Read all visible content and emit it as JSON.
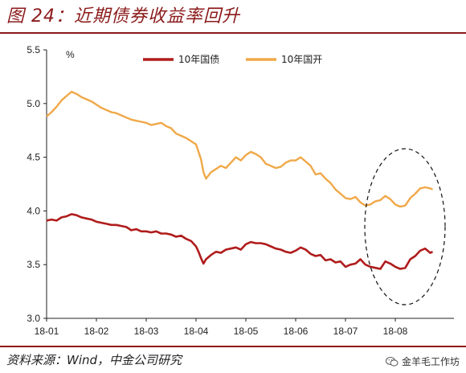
{
  "figure": {
    "title": "图 24：近期债券收益率回升",
    "source": "资料来源：Wind，中金公司研究",
    "watermark": "金羊毛工作坊"
  },
  "colors": {
    "title": "#8b1a1a",
    "govt_bond": "#b01c1c",
    "cdb_bond": "#f0a848",
    "axis": "#222222"
  },
  "chart_data": {
    "type": "line",
    "ylabel": "%",
    "ylim": [
      3.0,
      5.5
    ],
    "yticks": [
      "3.0",
      "3.5",
      "4.0",
      "4.5",
      "5.0",
      "5.5"
    ],
    "yticks_values": [
      3.0,
      3.5,
      4.0,
      4.5,
      5.0,
      5.5
    ],
    "xticks": [
      "18-01",
      "18-02",
      "18-03",
      "18-04",
      "18-05",
      "18-06",
      "18-07",
      "18-08"
    ],
    "xlim": [
      0,
      7.85
    ],
    "legend_position": "top",
    "grid": false,
    "annotation": "dashed ellipse around late July to August 2018",
    "series": [
      {
        "name": "10年国债",
        "color": "#b01c1c",
        "x": [
          0,
          0.1,
          0.2,
          0.3,
          0.4,
          0.5,
          0.6,
          0.7,
          0.8,
          0.9,
          1.0,
          1.1,
          1.2,
          1.3,
          1.4,
          1.5,
          1.6,
          1.7,
          1.8,
          1.9,
          2.0,
          2.1,
          2.2,
          2.3,
          2.4,
          2.5,
          2.6,
          2.7,
          2.8,
          2.9,
          3.0,
          3.05,
          3.1,
          3.15,
          3.2,
          3.3,
          3.4,
          3.5,
          3.6,
          3.7,
          3.8,
          3.9,
          4.0,
          4.1,
          4.2,
          4.3,
          4.4,
          4.5,
          4.6,
          4.7,
          4.8,
          4.9,
          5.0,
          5.1,
          5.2,
          5.3,
          5.4,
          5.5,
          5.6,
          5.7,
          5.8,
          5.9,
          6.0,
          6.1,
          6.2,
          6.3,
          6.4,
          6.5,
          6.6,
          6.7,
          6.8,
          6.9,
          7.0,
          7.1,
          7.2,
          7.3,
          7.4,
          7.5,
          7.6,
          7.7,
          7.75
        ],
        "y": [
          3.91,
          3.92,
          3.91,
          3.94,
          3.95,
          3.97,
          3.96,
          3.94,
          3.93,
          3.92,
          3.9,
          3.89,
          3.88,
          3.87,
          3.87,
          3.86,
          3.85,
          3.82,
          3.83,
          3.81,
          3.81,
          3.8,
          3.81,
          3.79,
          3.79,
          3.78,
          3.76,
          3.77,
          3.74,
          3.72,
          3.67,
          3.62,
          3.56,
          3.51,
          3.55,
          3.59,
          3.62,
          3.61,
          3.64,
          3.65,
          3.66,
          3.64,
          3.69,
          3.71,
          3.7,
          3.7,
          3.69,
          3.67,
          3.65,
          3.64,
          3.62,
          3.61,
          3.63,
          3.66,
          3.64,
          3.6,
          3.58,
          3.59,
          3.54,
          3.55,
          3.52,
          3.53,
          3.48,
          3.5,
          3.51,
          3.55,
          3.5,
          3.48,
          3.47,
          3.46,
          3.53,
          3.51,
          3.48,
          3.46,
          3.47,
          3.55,
          3.58,
          3.63,
          3.65,
          3.61,
          3.62
        ]
      },
      {
        "name": "10年国开",
        "color": "#f0a848",
        "x": [
          0,
          0.1,
          0.2,
          0.3,
          0.4,
          0.5,
          0.6,
          0.7,
          0.8,
          0.9,
          1.0,
          1.1,
          1.2,
          1.3,
          1.4,
          1.5,
          1.6,
          1.7,
          1.8,
          1.9,
          2.0,
          2.1,
          2.2,
          2.3,
          2.4,
          2.5,
          2.6,
          2.7,
          2.8,
          2.9,
          3.0,
          3.05,
          3.1,
          3.15,
          3.2,
          3.3,
          3.4,
          3.5,
          3.6,
          3.7,
          3.8,
          3.9,
          4.0,
          4.1,
          4.2,
          4.3,
          4.4,
          4.5,
          4.6,
          4.7,
          4.8,
          4.9,
          5.0,
          5.1,
          5.2,
          5.3,
          5.4,
          5.5,
          5.6,
          5.7,
          5.8,
          5.9,
          6.0,
          6.1,
          6.2,
          6.3,
          6.4,
          6.5,
          6.6,
          6.7,
          6.8,
          6.9,
          7.0,
          7.1,
          7.2,
          7.3,
          7.4,
          7.5,
          7.6,
          7.7,
          7.75
        ],
        "y": [
          4.88,
          4.92,
          4.97,
          5.03,
          5.07,
          5.11,
          5.09,
          5.06,
          5.04,
          5.02,
          4.99,
          4.96,
          4.94,
          4.92,
          4.91,
          4.89,
          4.87,
          4.85,
          4.84,
          4.83,
          4.82,
          4.8,
          4.81,
          4.82,
          4.79,
          4.77,
          4.72,
          4.7,
          4.68,
          4.65,
          4.62,
          4.55,
          4.48,
          4.36,
          4.3,
          4.36,
          4.39,
          4.42,
          4.4,
          4.45,
          4.5,
          4.47,
          4.52,
          4.55,
          4.53,
          4.5,
          4.44,
          4.42,
          4.4,
          4.41,
          4.45,
          4.47,
          4.47,
          4.5,
          4.46,
          4.42,
          4.34,
          4.35,
          4.3,
          4.26,
          4.2,
          4.16,
          4.12,
          4.11,
          4.13,
          4.08,
          4.05,
          4.06,
          4.09,
          4.1,
          4.14,
          4.11,
          4.06,
          4.04,
          4.05,
          4.12,
          4.16,
          4.21,
          4.22,
          4.21,
          4.2
        ]
      }
    ]
  }
}
